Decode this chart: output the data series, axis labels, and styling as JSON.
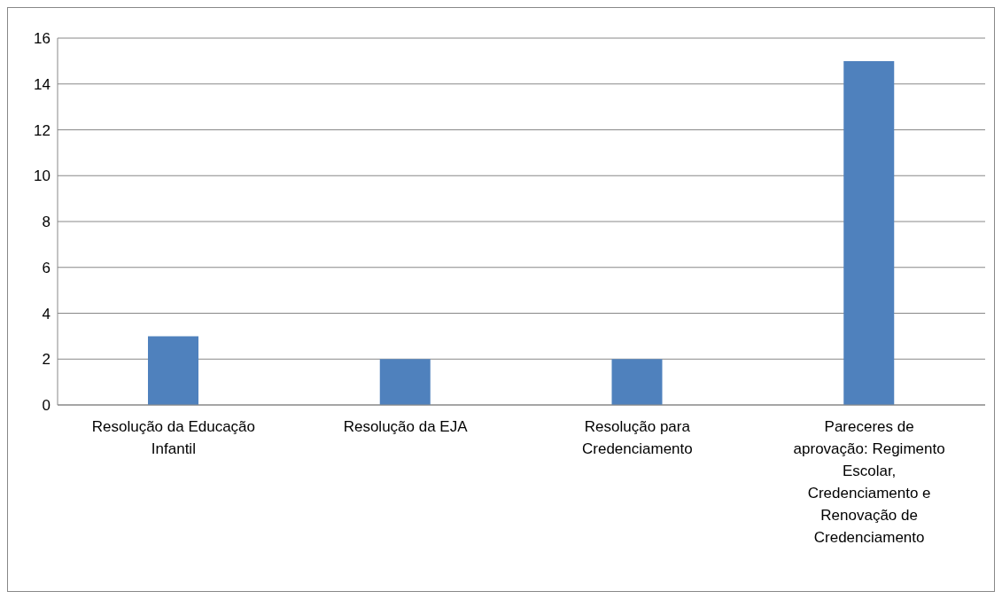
{
  "chart_data": {
    "type": "bar",
    "categories": [
      "Resolução da Educação Infantil",
      "Resolução da EJA",
      "Resolução para Credenciamento",
      "Pareceres de aprovação: Regimento Escolar, Credenciamento e Renovação de Credenciamento"
    ],
    "values": [
      3,
      2,
      2,
      15
    ],
    "color": "#4f81bd",
    "ylim": [
      0,
      16
    ],
    "yticks": [
      0,
      2,
      4,
      6,
      8,
      10,
      12,
      14,
      16
    ],
    "grid": "y",
    "legend": false
  }
}
